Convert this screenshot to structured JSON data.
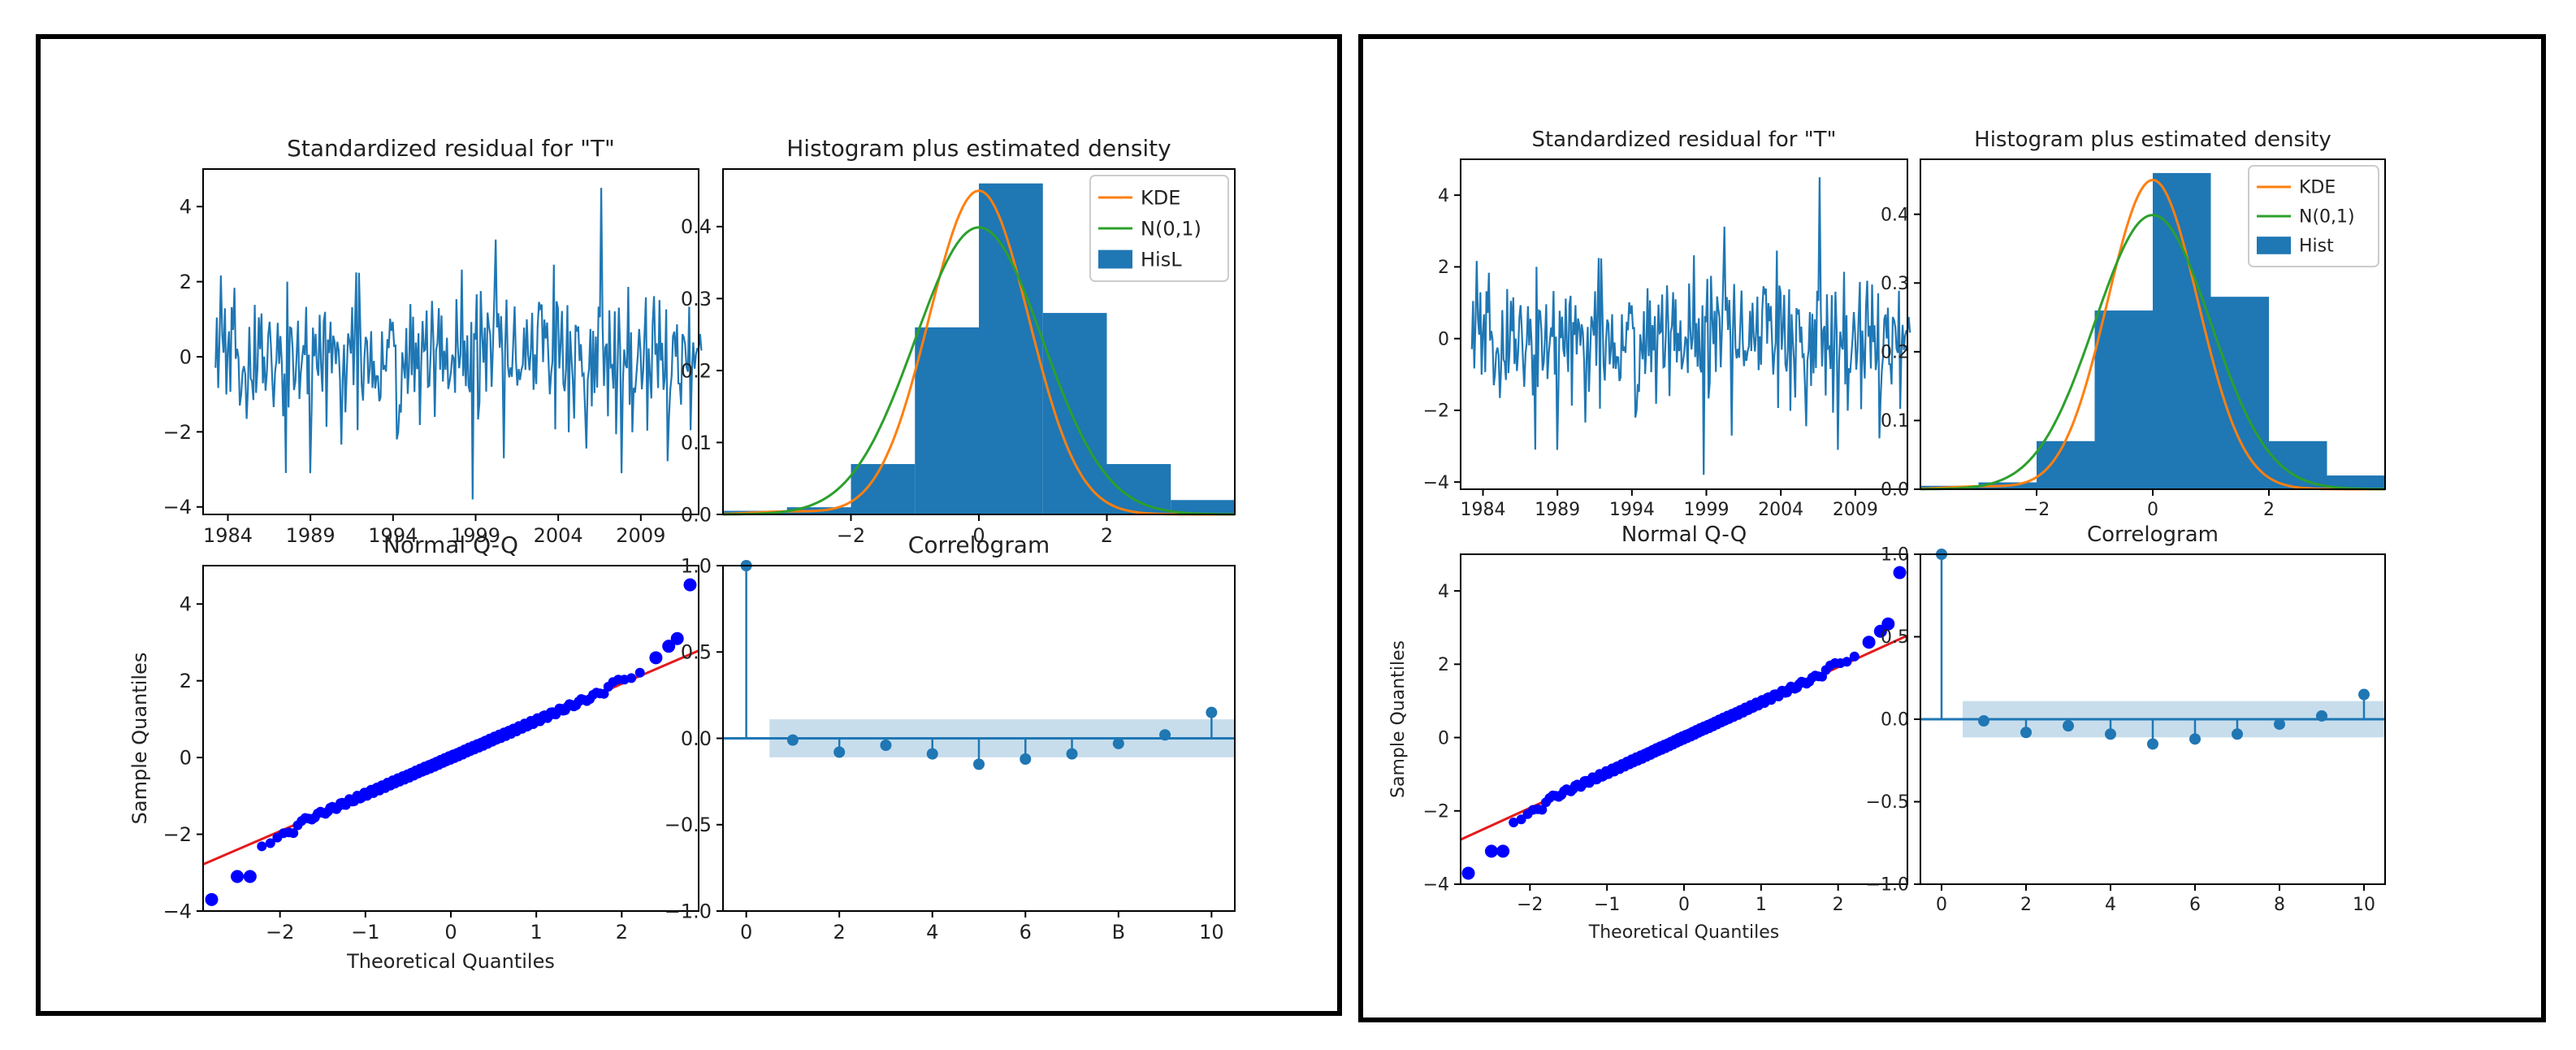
{
  "figures": [
    {
      "id": "left",
      "residual": {
        "title": "Standardized residual for \"T\"",
        "yticks": [
          "4",
          "2",
          "0",
          "−2",
          "−4"
        ],
        "xticks": [
          "1984",
          "1989",
          "1994",
          "1999",
          "2004",
          "2009"
        ]
      },
      "histogram": {
        "title": "Histogram plus estimated density",
        "yticks": [
          "0.4",
          "0.3",
          "0.2",
          "0.1",
          "0.0"
        ],
        "xticks": [
          "−2",
          "0",
          "2"
        ],
        "legend": [
          "KDE",
          "N(0,1)",
          "HisL"
        ]
      },
      "qq": {
        "title": "Normal Q-Q",
        "xlabel": "Theoretical Quantiles",
        "ylabel": "Sample Quantiles",
        "yticks": [
          "4",
          "2",
          "0",
          "−2",
          "−4"
        ],
        "xticks": [
          "−2",
          "−1",
          "0",
          "1",
          "2"
        ]
      },
      "correlogram": {
        "title": "Correlogram",
        "yticks": [
          "1.0",
          "0.5",
          "0.0",
          "−0.5",
          "−1.0"
        ],
        "xticks": [
          "0",
          "2",
          "4",
          "6",
          "B",
          "10"
        ]
      }
    },
    {
      "id": "right",
      "residual": {
        "title": "Standardized residual for \"T\"",
        "yticks": [
          "4",
          "2",
          "0",
          "−2",
          "−4"
        ],
        "xticks": [
          "1984",
          "1989",
          "1994",
          "1999",
          "2004",
          "2009"
        ]
      },
      "histogram": {
        "title": "Histogram plus estimated density",
        "yticks": [
          "0.4",
          "0.3",
          "0.2",
          "0.1",
          "0.0"
        ],
        "xticks": [
          "−2",
          "0",
          "2"
        ],
        "legend": [
          "KDE",
          "N(0,1)",
          "Hist"
        ]
      },
      "qq": {
        "title": "Normal Q-Q",
        "xlabel": "Theoretical Quantiles",
        "ylabel": "Sample Quantiles",
        "yticks": [
          "4",
          "2",
          "0",
          "−2",
          "−4"
        ],
        "xticks": [
          "−2",
          "−1",
          "0",
          "1",
          "2"
        ]
      },
      "correlogram": {
        "title": "Correlogram",
        "yticks": [
          "1.0",
          "0.5",
          "0.0",
          "−0.5",
          "−1.0"
        ],
        "xticks": [
          "0",
          "2",
          "4",
          "6",
          "8",
          "10"
        ]
      }
    }
  ],
  "chart_data": [
    {
      "type": "line",
      "title": "Standardized residual for \"T\"",
      "xlim": [
        1982.5,
        2012.5
      ],
      "ylim": [
        -4.2,
        5.0
      ],
      "series": [
        {
          "name": "residual",
          "note": "monthly standardized residuals, mostly within ±2.5, extremes about 4.5 (2007) and −3.8 (1999)"
        }
      ]
    },
    {
      "type": "bar",
      "title": "Histogram plus estimated density",
      "bin_edges": [
        -4,
        -3,
        -2,
        -1,
        0,
        1,
        2,
        3,
        4
      ],
      "values": [
        0.005,
        0.01,
        0.07,
        0.26,
        0.46,
        0.28,
        0.07,
        0.02
      ],
      "xlim": [
        -4,
        4
      ],
      "ylim": [
        0,
        0.48
      ],
      "series": [
        {
          "name": "KDE",
          "peak": 0.45
        },
        {
          "name": "N(0,1)",
          "peak": 0.399
        }
      ]
    },
    {
      "type": "scatter",
      "title": "Normal Q-Q",
      "xlabel": "Theoretical Quantiles",
      "ylabel": "Sample Quantiles",
      "xlim": [
        -2.9,
        2.9
      ],
      "ylim": [
        -4.0,
        5.0
      ],
      "reference_line": {
        "slope": 0.96,
        "intercept": 0.0
      },
      "tail_points": [
        [
          -2.8,
          -3.7
        ],
        [
          -2.5,
          -3.1
        ],
        [
          -2.35,
          -3.1
        ],
        [
          2.4,
          2.6
        ],
        [
          2.55,
          2.9
        ],
        [
          2.65,
          3.1
        ],
        [
          2.8,
          4.5
        ]
      ]
    },
    {
      "type": "bar",
      "title": "Correlogram",
      "lags": [
        0,
        1,
        2,
        3,
        4,
        5,
        6,
        7,
        8,
        9,
        10
      ],
      "values": [
        1.0,
        -0.01,
        -0.08,
        -0.04,
        -0.09,
        -0.15,
        -0.12,
        -0.09,
        -0.03,
        0.02,
        0.15
      ],
      "confidence_band": [
        -0.11,
        0.11
      ],
      "xlim": [
        -0.5,
        10.5
      ],
      "ylim": [
        -1.0,
        1.0
      ]
    }
  ]
}
